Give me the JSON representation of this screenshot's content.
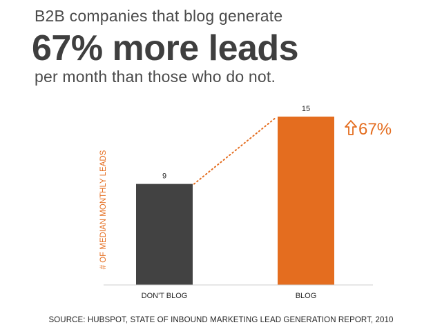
{
  "header": {
    "line1": "B2B companies that blog generate",
    "line2": "67% more leads",
    "line3": "per month than those who do not."
  },
  "chart_data": {
    "type": "bar",
    "categories": [
      "DON'T BLOG",
      "BLOG"
    ],
    "values": [
      9,
      15
    ],
    "ylabel": "# OF MEDIAN MONTHLY LEADS",
    "ylim": [
      0,
      15
    ],
    "grid": false,
    "bar_colors": [
      "#424242",
      "#e46d1f"
    ],
    "accent_color": "#e46d1f",
    "annotation": {
      "icon": "up-arrow-outline-icon",
      "text": "67%"
    }
  },
  "footer": {
    "source": "SOURCE: HUBSPOT, STATE OF INBOUND MARKETING LEAD GENERATION REPORT, 2010"
  }
}
